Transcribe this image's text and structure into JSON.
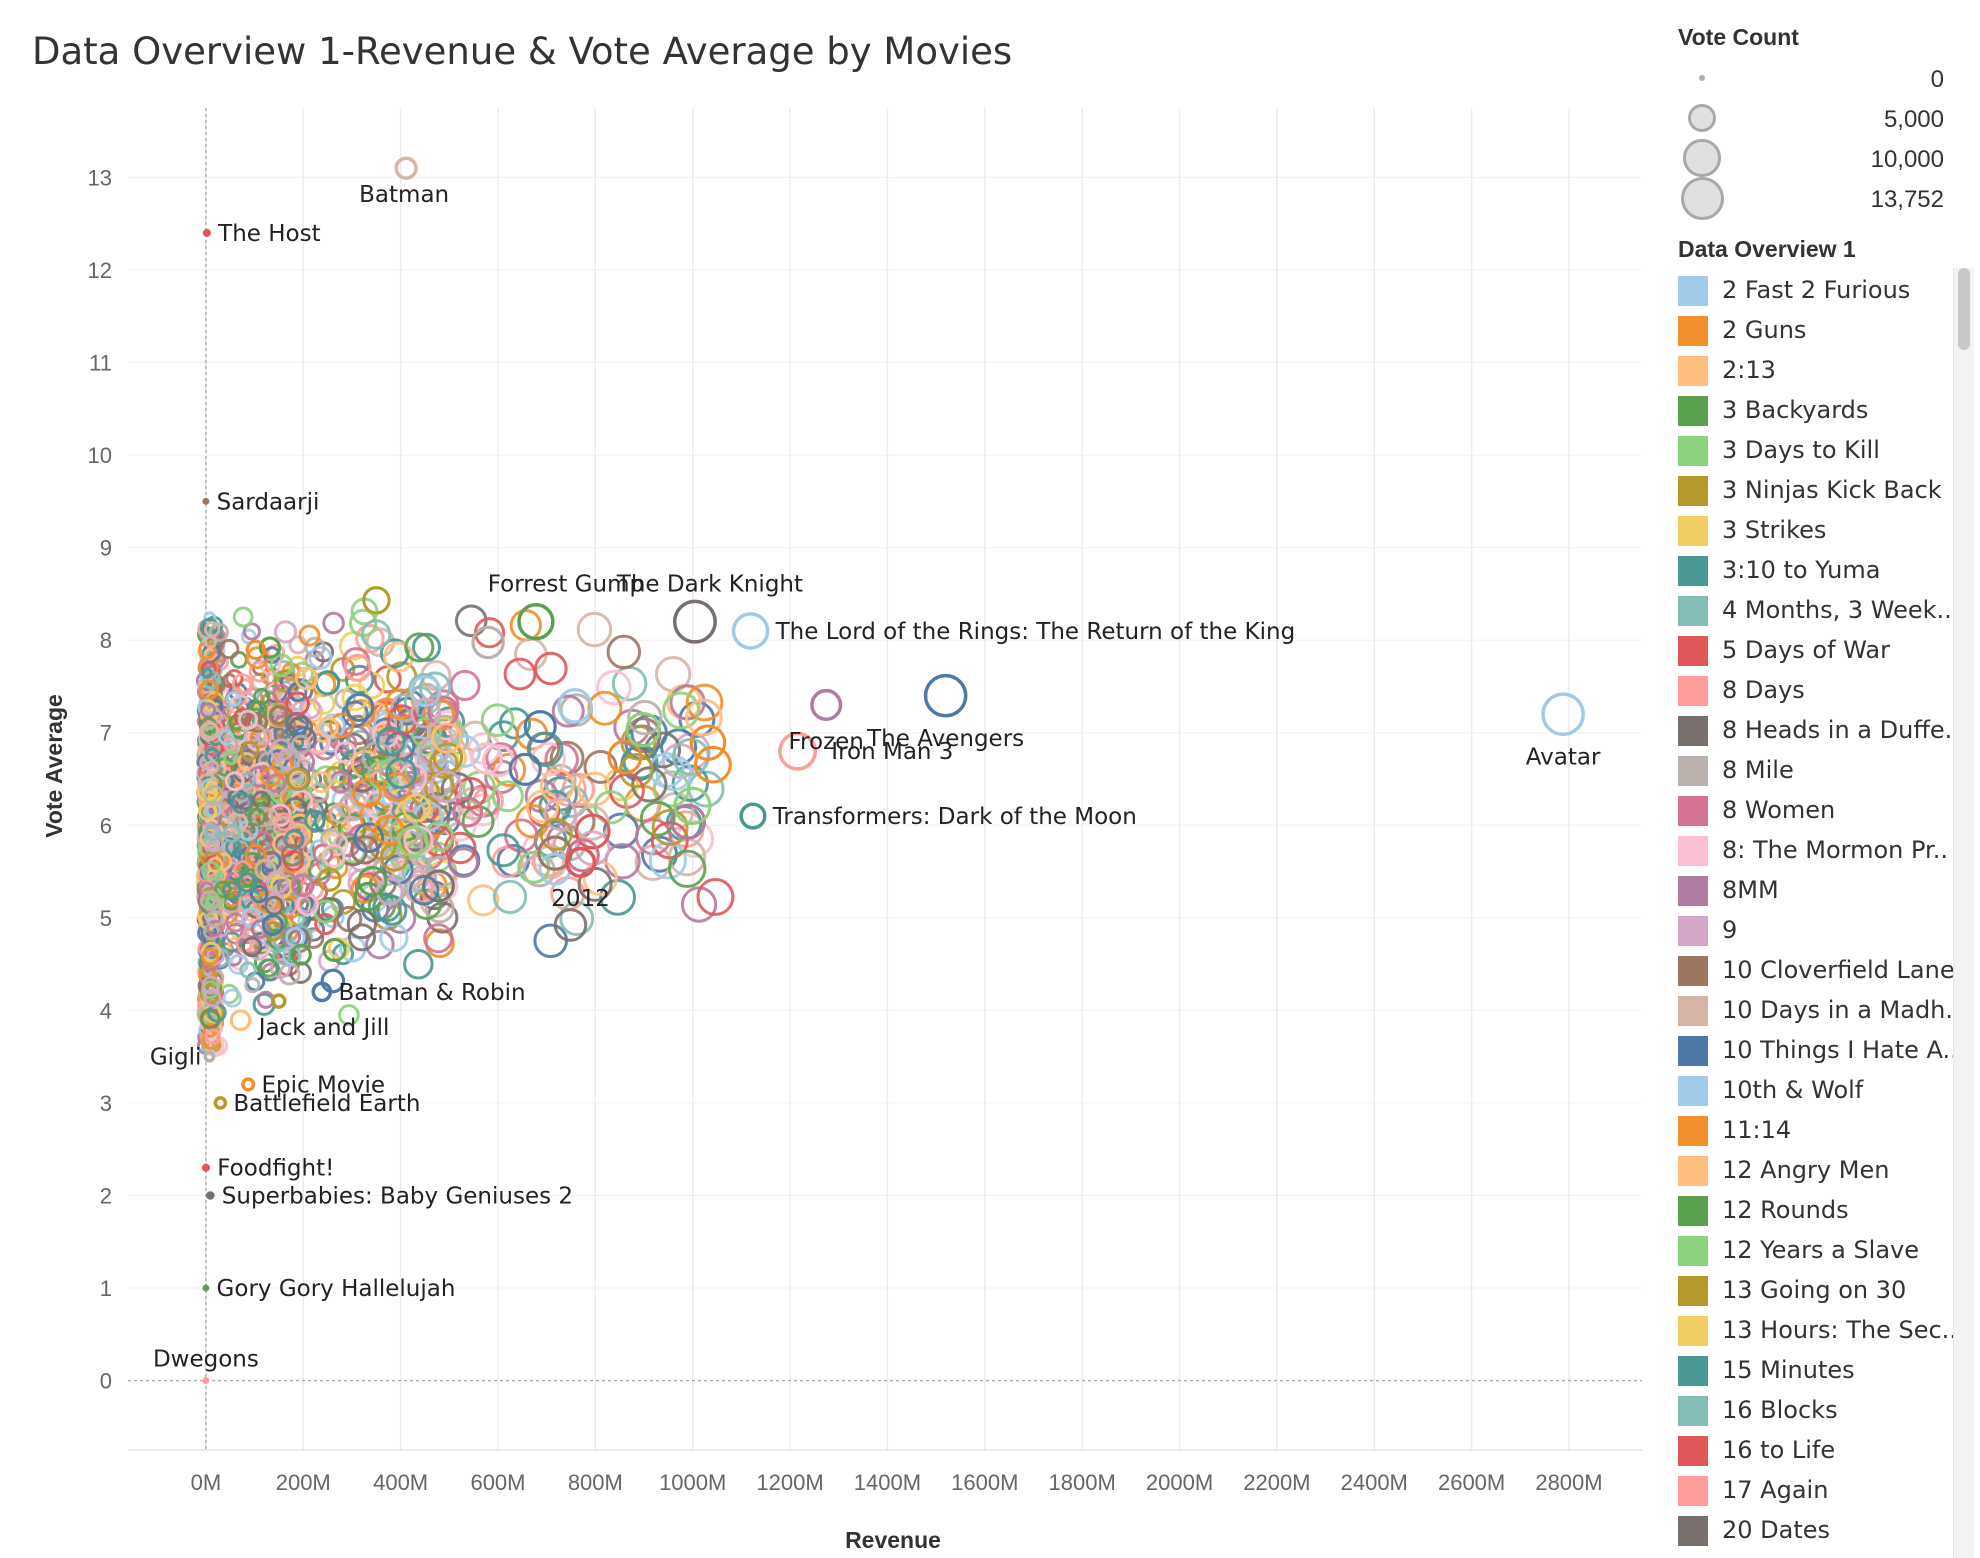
{
  "title": "Data Overview 1-Revenue & Vote Average by Movies",
  "chart_data": {
    "type": "scatter",
    "title": "Data Overview 1-Revenue & Vote Average by Movies",
    "xlabel": "Revenue",
    "ylabel": "Vote Average",
    "xlim": [
      -160000000,
      2950000000
    ],
    "ylim": [
      -0.75,
      13.75
    ],
    "x_ticks": [
      0,
      200000000,
      400000000,
      600000000,
      800000000,
      1000000000,
      1200000000,
      1400000000,
      1600000000,
      1800000000,
      2000000000,
      2200000000,
      2400000000,
      2600000000,
      2800000000
    ],
    "x_tick_labels": [
      "0M",
      "200M",
      "400M",
      "600M",
      "800M",
      "1000M",
      "1200M",
      "1400M",
      "1600M",
      "1800M",
      "2000M",
      "2200M",
      "2400M",
      "2600M",
      "2800M"
    ],
    "y_ticks": [
      0,
      1,
      2,
      3,
      4,
      5,
      6,
      7,
      8,
      9,
      10,
      11,
      12,
      13
    ],
    "y_tick_labels": [
      "0",
      "1",
      "2",
      "3",
      "4",
      "5",
      "6",
      "7",
      "8",
      "9",
      "10",
      "11",
      "12",
      "13"
    ],
    "grid": true,
    "size_encoding": "Vote Count",
    "color_encoding": "Data Overview 1",
    "labeled_points": [
      {
        "label": "Avatar",
        "x": 2787965087,
        "y": 7.2,
        "votes": 11800,
        "color": "#a0cbe8"
      },
      {
        "label": "The Avengers",
        "x": 1519557910,
        "y": 7.4,
        "votes": 11776,
        "color": "#4e79a7"
      },
      {
        "label": "Frozen",
        "x": 1274219009,
        "y": 7.3,
        "votes": 5295,
        "color": "#b07aa1"
      },
      {
        "label": "Iron Man 3",
        "x": 1215439994,
        "y": 6.8,
        "votes": 8806,
        "color": "#ff9d9a"
      },
      {
        "label": "Transformers: Dark of the Moon",
        "x": 1123746996,
        "y": 6.1,
        "votes": 3299,
        "color": "#499894"
      },
      {
        "label": "The Lord of the Rings: The Return of the King",
        "x": 1118888979,
        "y": 8.1,
        "votes": 8064,
        "color": "#a0cbe8"
      },
      {
        "label": "The Dark Knight",
        "x": 1004558444,
        "y": 8.2,
        "votes": 12002,
        "color": "#79706e"
      },
      {
        "label": "Forrest Gump",
        "x": 677945399,
        "y": 8.2,
        "votes": 7927,
        "color": "#59a14f"
      },
      {
        "label": "2012",
        "x": 769653595,
        "y": 5.6,
        "votes": 4903,
        "color": "#e15759"
      },
      {
        "label": "Batman",
        "x": 411348924,
        "y": 13.1,
        "votes": 2096,
        "color": "#d7b5a6"
      },
      {
        "label": "The Host",
        "x": 2000000,
        "y": 12.4,
        "votes": 24,
        "color": "#e15759"
      },
      {
        "label": "Sardaarji",
        "x": 0,
        "y": 9.5,
        "votes": 2,
        "color": "#9d7660"
      },
      {
        "label": "Batman & Robin",
        "x": 238207122,
        "y": 4.2,
        "votes": 1418,
        "color": "#4e79a7"
      },
      {
        "label": "Jack and Jill",
        "x": 149673788,
        "y": 4.1,
        "votes": 472,
        "color": "#b6992d"
      },
      {
        "label": "Gigli",
        "x": 7266209,
        "y": 3.5,
        "votes": 107,
        "color": "#bab0ac"
      },
      {
        "label": "Epic Movie",
        "x": 86865564,
        "y": 3.2,
        "votes": 302,
        "color": "#f28e2b"
      },
      {
        "label": "Battlefield Earth",
        "x": 29725663,
        "y": 3.0,
        "votes": 239,
        "color": "#b6992d"
      },
      {
        "label": "Foodfight!",
        "x": 73706,
        "y": 2.3,
        "votes": 27,
        "color": "#e15759"
      },
      {
        "label": "Superbabies: Baby Geniuses 2",
        "x": 9109322,
        "y": 2.0,
        "votes": 37,
        "color": "#79706e"
      },
      {
        "label": "Gory Gory Hallelujah",
        "x": 0,
        "y": 1.0,
        "votes": 1,
        "color": "#59a14f"
      },
      {
        "label": "Dwegons",
        "x": 0,
        "y": 0.0,
        "votes": 1,
        "color": "#ff9d9a"
      }
    ],
    "dense_cluster": {
      "note_points_count": 2400,
      "x_range": [
        0,
        1100000000
      ],
      "y_range": [
        4.0,
        8.6
      ],
      "palette": [
        "#4e79a7",
        "#a0cbe8",
        "#f28e2b",
        "#ffbe7d",
        "#59a14f",
        "#8cd17d",
        "#b6992d",
        "#f1ce63",
        "#499894",
        "#86bcb6",
        "#e15759",
        "#ff9d9a",
        "#79706e",
        "#bab0ac",
        "#d37295",
        "#fabfd2",
        "#b07aa1",
        "#d4a6c8",
        "#9d7660",
        "#d7b5a6"
      ]
    },
    "legend_size": {
      "title": "Vote Count",
      "entries": [
        {
          "label": "0",
          "value": 0
        },
        {
          "label": "5,000",
          "value": 5000
        },
        {
          "label": "10,000",
          "value": 10000
        },
        {
          "label": "13,752",
          "value": 13752
        }
      ]
    },
    "legend_color": {
      "title": "Data Overview 1",
      "entries": [
        {
          "label": "2 Fast 2 Furious",
          "color": "#a0cbe8"
        },
        {
          "label": "2 Guns",
          "color": "#f28e2b"
        },
        {
          "label": "2:13",
          "color": "#ffbe7d"
        },
        {
          "label": "3 Backyards",
          "color": "#59a14f"
        },
        {
          "label": "3 Days to Kill",
          "color": "#8cd17d"
        },
        {
          "label": "3 Ninjas Kick Back",
          "color": "#b6992d"
        },
        {
          "label": "3 Strikes",
          "color": "#f1ce63"
        },
        {
          "label": "3:10 to Yuma",
          "color": "#499894"
        },
        {
          "label": "4 Months, 3 Week..",
          "color": "#86bcb6"
        },
        {
          "label": "5 Days of War",
          "color": "#e15759"
        },
        {
          "label": "8 Days",
          "color": "#ff9d9a"
        },
        {
          "label": "8 Heads in a Duffe..",
          "color": "#79706e"
        },
        {
          "label": "8 Mile",
          "color": "#bab0ac"
        },
        {
          "label": "8 Women",
          "color": "#d37295"
        },
        {
          "label": "8: The Mormon Pr..",
          "color": "#fabfd2"
        },
        {
          "label": "8MM",
          "color": "#b07aa1"
        },
        {
          "label": "9",
          "color": "#d4a6c8"
        },
        {
          "label": "10 Cloverfield Lane",
          "color": "#9d7660"
        },
        {
          "label": "10 Days in a Madh..",
          "color": "#d7b5a6"
        },
        {
          "label": "10 Things I Hate A..",
          "color": "#4e79a7"
        },
        {
          "label": "10th & Wolf",
          "color": "#a0cbe8"
        },
        {
          "label": "11:14",
          "color": "#f28e2b"
        },
        {
          "label": "12 Angry Men",
          "color": "#ffbe7d"
        },
        {
          "label": "12 Rounds",
          "color": "#59a14f"
        },
        {
          "label": "12 Years a Slave",
          "color": "#8cd17d"
        },
        {
          "label": "13 Going on 30",
          "color": "#b6992d"
        },
        {
          "label": "13 Hours: The Sec..",
          "color": "#f1ce63"
        },
        {
          "label": "15 Minutes",
          "color": "#499894"
        },
        {
          "label": "16 Blocks",
          "color": "#86bcb6"
        },
        {
          "label": "16 to Life",
          "color": "#e15759"
        },
        {
          "label": "17 Again",
          "color": "#ff9d9a"
        },
        {
          "label": "20 Dates",
          "color": "#79706e"
        }
      ]
    }
  }
}
